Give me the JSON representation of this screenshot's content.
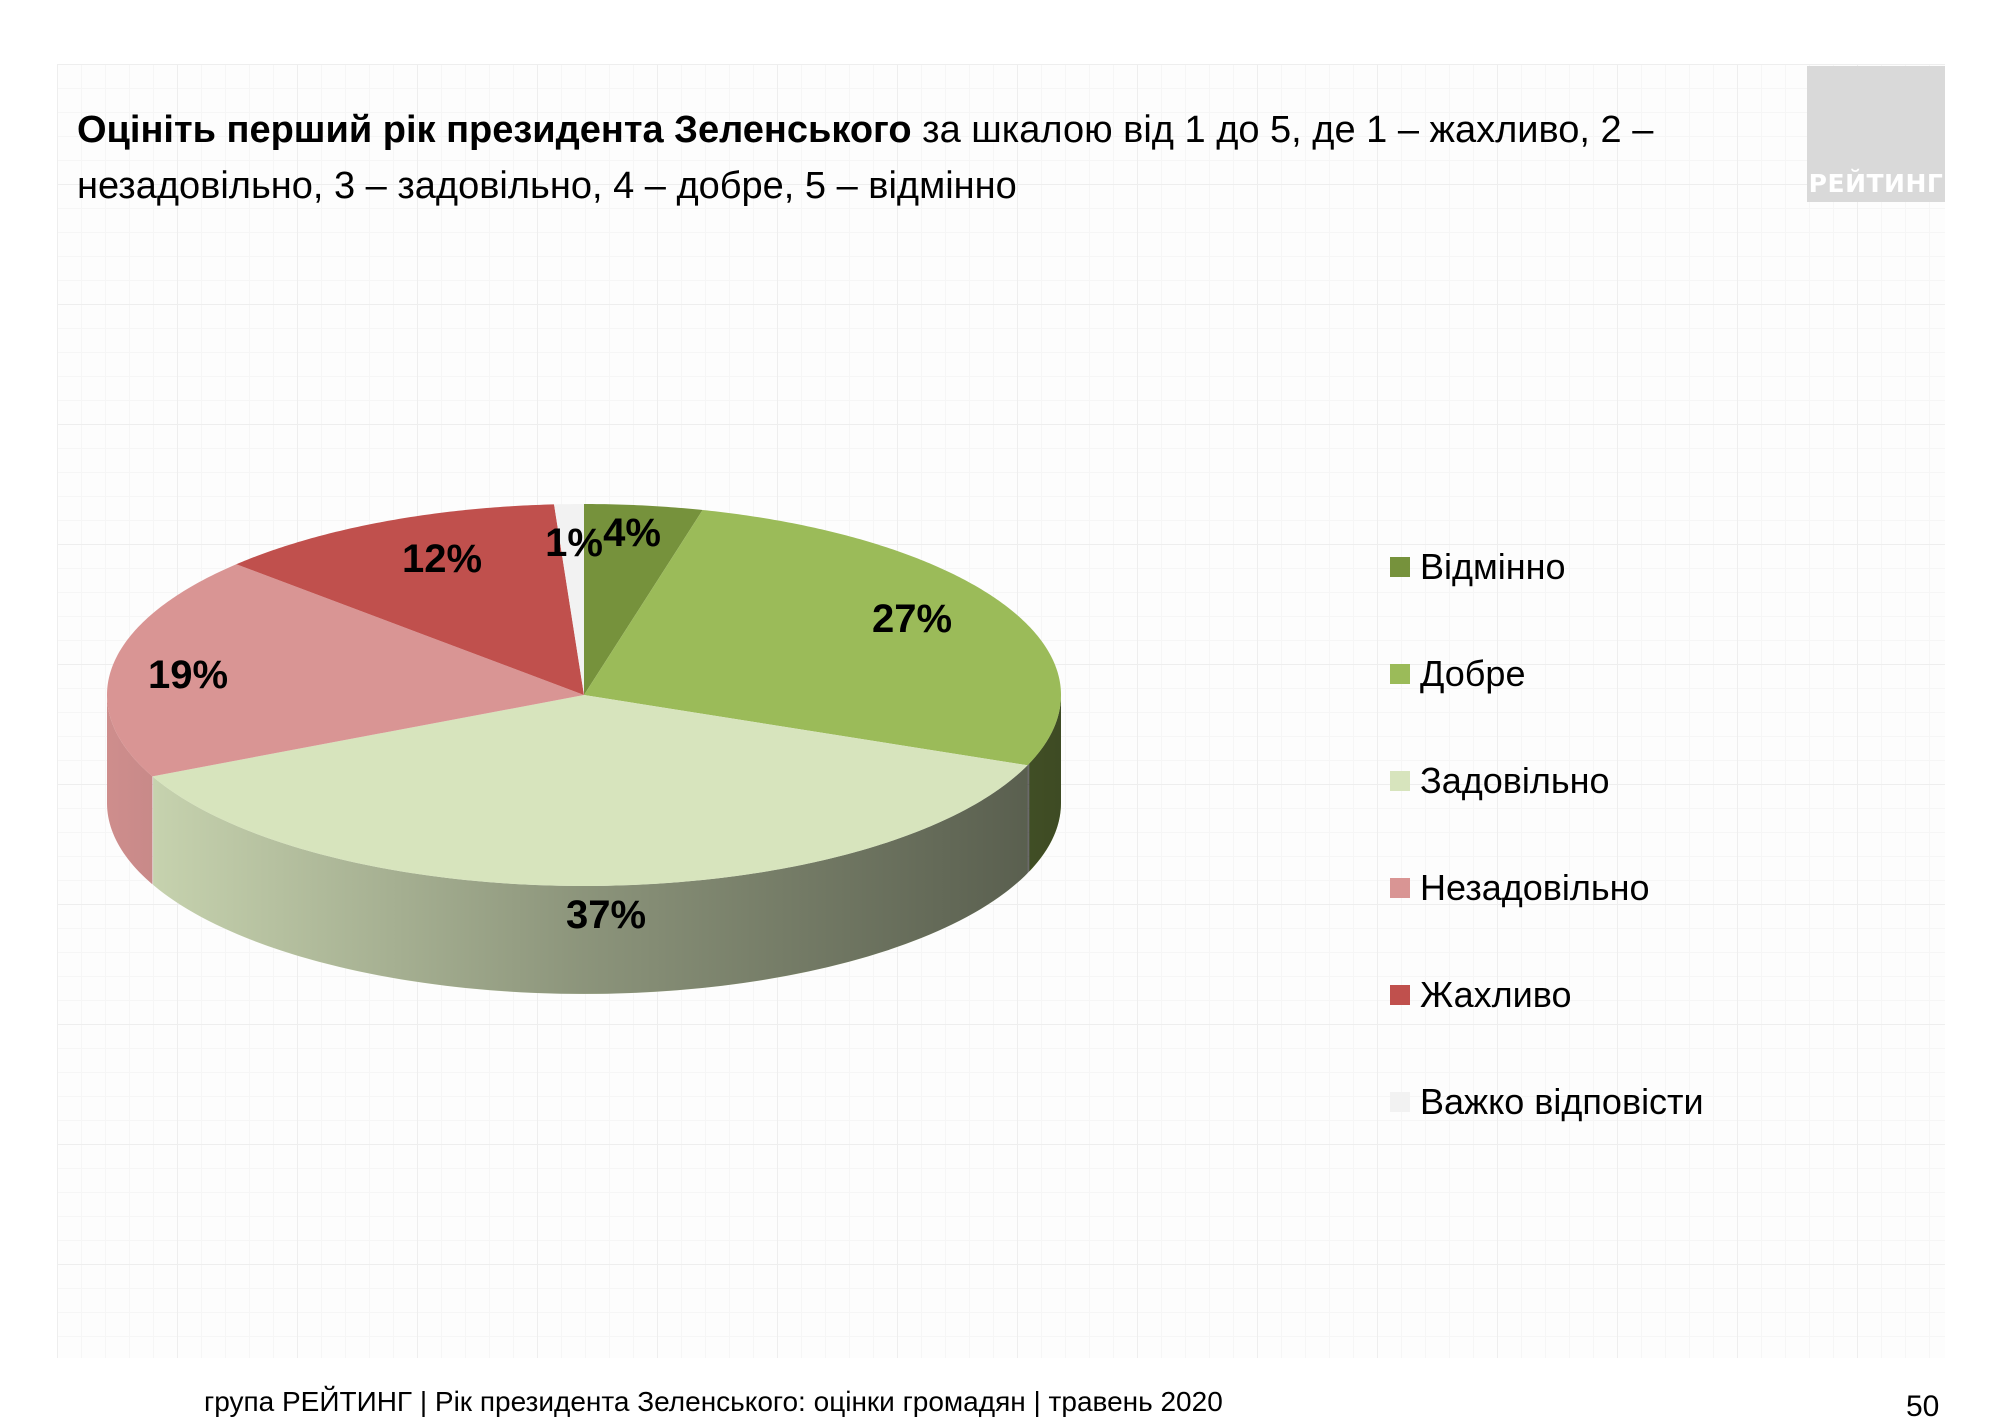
{
  "title": {
    "bold": "Оцініть перший рік президента Зеленського",
    "rest": " за шкалою від 1 до 5, де 1 – жахливо, 2 – незадовільно, 3 – задовільно, 4 – добре, 5 – відмінно"
  },
  "logo": "РЕЙТИНГ",
  "chart_data": {
    "type": "pie",
    "style": "3d",
    "categories": [
      "Відмінно",
      "Добре",
      "Задовільно",
      "Незадовільно",
      "Жахливо",
      "Важко відповісти"
    ],
    "values": [
      4,
      27,
      37,
      19,
      12,
      1
    ],
    "labels": [
      "4%",
      "27%",
      "37%",
      "19%",
      "12%",
      "1%"
    ],
    "colors": [
      "#76923c",
      "#9bbb59",
      "#d7e4bd",
      "#d99594",
      "#c0504d",
      "#f2f2f2"
    ],
    "legend_position": "right"
  },
  "footer": "група РЕЙТИНГ |  Рік президента Зеленського: оцінки громадян | травень 2020",
  "page_number": "50"
}
